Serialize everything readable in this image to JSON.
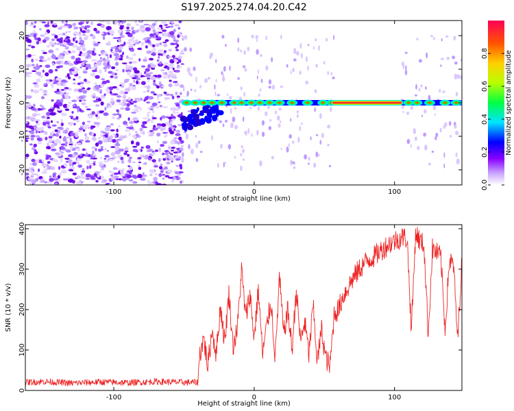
{
  "title": "S197.2025.274.04.20.C42",
  "chart_data": [
    {
      "type": "heatmap",
      "name": "spectrogram",
      "xlabel": "Height of straight line (km)",
      "ylabel": "Frequency (Hz)",
      "xlim": [
        -163,
        148
      ],
      "ylim": [
        -24.5,
        24.5
      ],
      "x_ticks": [
        -100,
        0,
        100
      ],
      "x_tick_labels": [
        "-100",
        "0",
        "100"
      ],
      "y_ticks": [
        -20,
        -10,
        0,
        10,
        20
      ],
      "y_tick_labels": [
        "-20",
        "-10",
        "0",
        "10",
        "20"
      ],
      "noise_region_x": [
        -163,
        -51
      ],
      "signal_frequency": 0,
      "continuous_band_x": [
        55,
        106
      ],
      "blobs_x": [
        -48,
        -42,
        -36,
        -30,
        -23,
        -14,
        -9,
        -2,
        4,
        11,
        18,
        27,
        38,
        49,
        55,
        110,
        116,
        125,
        136,
        144
      ],
      "colorbar": {
        "label": "Normalized spectral amplitude",
        "range": [
          0,
          1
        ],
        "ticks": [
          0.0,
          0.2,
          0.4,
          0.6,
          0.8
        ],
        "tick_labels": [
          "0.0",
          "0.2",
          "0.4",
          "0.6",
          "0.8"
        ],
        "colors": [
          "#ffffff",
          "#c9a8ff",
          "#8800ff",
          "#0000ff",
          "#00e5ff",
          "#00ff44",
          "#b8ff00",
          "#ffd000",
          "#ff5500",
          "#ff0055"
        ]
      }
    },
    {
      "type": "line",
      "name": "snr",
      "xlabel": "Height of straight line (km)",
      "ylabel": "SNR (10 * v/v)",
      "xlim": [
        -163,
        148
      ],
      "ylim": [
        0,
        410
      ],
      "x_ticks": [
        -100,
        0,
        100
      ],
      "x_tick_labels": [
        "-100",
        "0",
        "100"
      ],
      "y_ticks": [
        0,
        100,
        200,
        300,
        400
      ],
      "y_tick_labels": [
        "0",
        "100",
        "200",
        "300",
        "400"
      ],
      "color": "#ee2222",
      "series": [
        {
          "name": "SNR",
          "x": [
            -163,
            -150,
            -130,
            -110,
            -90,
            -70,
            -50,
            -40,
            -39,
            -36,
            -33,
            -30,
            -27,
            -24,
            -21,
            -18,
            -15,
            -12,
            -9,
            -6,
            -3,
            0,
            3,
            6,
            9,
            12,
            15,
            18,
            21,
            24,
            27,
            30,
            33,
            36,
            39,
            42,
            45,
            48,
            51,
            54,
            57,
            60,
            63,
            66,
            70,
            75,
            80,
            85,
            90,
            95,
            100,
            103,
            106,
            109,
            112,
            115,
            118,
            121,
            124,
            127,
            130,
            133,
            136,
            139,
            142,
            145,
            148
          ],
          "values": [
            20,
            22,
            18,
            21,
            19,
            22,
            20,
            20,
            85,
            130,
            60,
            150,
            90,
            210,
            120,
            240,
            110,
            150,
            300,
            180,
            240,
            130,
            250,
            90,
            160,
            220,
            80,
            280,
            140,
            200,
            100,
            250,
            120,
            170,
            90,
            210,
            70,
            150,
            80,
            60,
            190,
            200,
            230,
            250,
            275,
            300,
            320,
            330,
            345,
            360,
            370,
            375,
            380,
            375,
            150,
            390,
            370,
            360,
            140,
            350,
            340,
            330,
            150,
            320,
            310,
            125,
            325
          ]
        }
      ]
    }
  ]
}
